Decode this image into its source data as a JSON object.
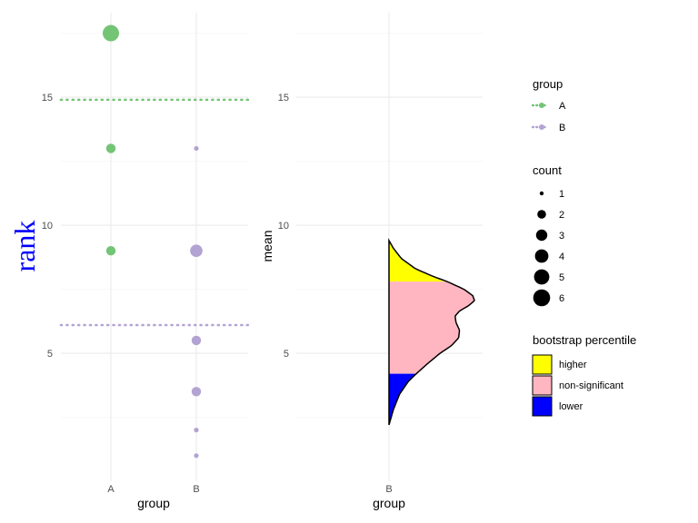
{
  "colors": {
    "groupA": "#74c476",
    "groupB": "#b3a3d3",
    "higher": "#ffff00",
    "nonsig": "#ffb6c1",
    "lower": "#0000ff",
    "rankTitle": "#0000ff"
  },
  "chart_data": [
    {
      "type": "scatter",
      "panel": "left",
      "xlabel": "group",
      "ylabel": "rank",
      "categories": [
        "A",
        "B"
      ],
      "ylim": [
        0,
        18.3
      ],
      "yticks": [
        5,
        10,
        15
      ],
      "series": [
        {
          "name": "A",
          "points": [
            {
              "x": "A",
              "y": 17.5,
              "count": 6
            },
            {
              "x": "A",
              "y": 13,
              "count": 3
            },
            {
              "x": "A",
              "y": 9,
              "count": 3
            }
          ]
        },
        {
          "name": "B",
          "points": [
            {
              "x": "B",
              "y": 13,
              "count": 1
            },
            {
              "x": "B",
              "y": 9,
              "count": 4
            },
            {
              "x": "B",
              "y": 5.5,
              "count": 3
            },
            {
              "x": "B",
              "y": 3.5,
              "count": 3
            },
            {
              "x": "B",
              "y": 2,
              "count": 1
            },
            {
              "x": "B",
              "y": 1,
              "count": 1
            }
          ]
        }
      ],
      "hlines": [
        {
          "group": "A",
          "y": 14.9,
          "style": "dotted"
        },
        {
          "group": "B",
          "y": 6.1,
          "style": "dotted"
        }
      ]
    },
    {
      "type": "area",
      "panel": "right",
      "xlabel": "group",
      "ylabel": "mean",
      "categories": [
        "B"
      ],
      "ylim": [
        0,
        18.3
      ],
      "yticks": [
        5,
        10,
        15
      ],
      "density": {
        "mean": [
          2.2,
          2.8,
          3.4,
          3.9,
          4.2,
          4.6,
          5.0,
          5.3,
          5.6,
          5.9,
          6.2,
          6.45,
          6.65,
          6.85,
          7.05,
          7.25,
          7.5,
          7.8,
          8.0,
          8.3,
          8.7,
          9.1,
          9.4
        ],
        "density": [
          0.0,
          0.05,
          0.12,
          0.22,
          0.31,
          0.44,
          0.58,
          0.71,
          0.79,
          0.8,
          0.76,
          0.75,
          0.8,
          0.9,
          0.97,
          0.95,
          0.85,
          0.66,
          0.5,
          0.3,
          0.14,
          0.05,
          0.0
        ]
      },
      "bands": [
        {
          "label": "higher",
          "from": 7.8,
          "to": 9.4
        },
        {
          "label": "non-significant",
          "from": 4.2,
          "to": 7.8
        },
        {
          "label": "lower",
          "from": 2.2,
          "to": 4.2
        }
      ]
    }
  ],
  "legend": {
    "group": {
      "title": "group",
      "items": [
        "A",
        "B"
      ]
    },
    "count": {
      "title": "count",
      "items": [
        "1",
        "2",
        "3",
        "4",
        "5",
        "6"
      ]
    },
    "bootstrap": {
      "title": "bootstrap percentile",
      "items": [
        "higher",
        "non-significant",
        "lower"
      ]
    }
  }
}
